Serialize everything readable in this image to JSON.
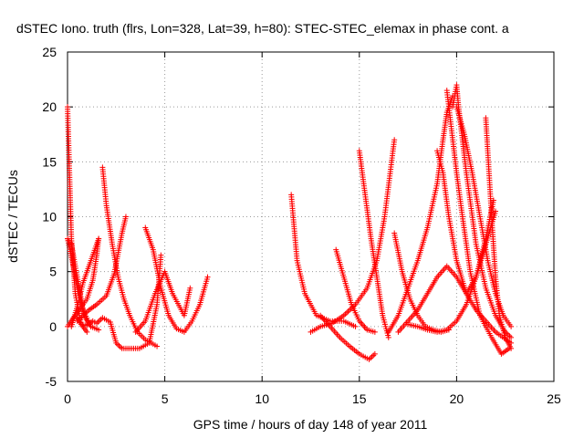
{
  "chart_data": {
    "type": "scatter",
    "title": "dSTEC Iono. truth (flrs, Lon=328, Lat=39, h=80): STEC-STEC_elemax in phase cont. a",
    "xlabel": "GPS time / hours of day 148 of year 2011",
    "ylabel": "dSTEC  / TECUs",
    "xlim": [
      0,
      25
    ],
    "ylim": [
      -5,
      25
    ],
    "xticks": [
      "0",
      "5",
      "10",
      "15",
      "20",
      "25"
    ],
    "yticks": [
      "-5",
      "0",
      "5",
      "10",
      "15",
      "20",
      "25"
    ],
    "grid": true,
    "marker": "+",
    "color": "#ff0000",
    "series": [
      {
        "x": [
          0.0,
          0.1,
          0.2,
          0.4,
          0.7,
          1.0
        ],
        "y": [
          20.0,
          14.0,
          8.0,
          3.0,
          0.2,
          -0.5
        ]
      },
      {
        "x": [
          0.0,
          0.2,
          0.5,
          0.8,
          1.2,
          1.6
        ],
        "y": [
          8.0,
          7.5,
          4.5,
          1.5,
          0.0,
          -0.3
        ]
      },
      {
        "x": [
          0.0,
          0.3,
          0.6,
          1.0,
          1.3,
          1.5,
          1.6
        ],
        "y": [
          0.0,
          0.8,
          1.5,
          2.5,
          4.2,
          6.5,
          8.0
        ]
      },
      {
        "x": [
          0.2,
          0.5,
          0.8,
          1.2,
          1.5,
          1.6
        ],
        "y": [
          0.0,
          1.8,
          4.0,
          6.0,
          7.5,
          8.0
        ]
      },
      {
        "x": [
          0.0,
          0.3,
          0.6,
          0.9,
          1.2
        ],
        "y": [
          8.0,
          5.5,
          2.8,
          0.8,
          0.0
        ]
      },
      {
        "x": [
          0.5,
          0.8,
          1.1,
          1.5,
          2.0,
          2.4,
          2.8,
          3.0
        ],
        "y": [
          0.5,
          1.0,
          1.5,
          2.0,
          2.8,
          4.8,
          8.5,
          10.0
        ]
      },
      {
        "x": [
          1.8,
          2.0,
          2.3,
          2.6,
          2.9,
          3.2,
          3.6,
          4.0,
          4.6
        ],
        "y": [
          14.5,
          11.0,
          7.5,
          4.5,
          2.5,
          1.0,
          -0.5,
          -1.2,
          -1.8
        ]
      },
      {
        "x": [
          0.5,
          0.7,
          1.0,
          1.3,
          1.5,
          1.8,
          2.2,
          2.5,
          2.8,
          3.2,
          3.7,
          4.2,
          4.6,
          4.8
        ],
        "y": [
          0.8,
          0.2,
          0.1,
          0.5,
          0.3,
          0.8,
          0.4,
          -1.5,
          -2.0,
          -2.0,
          -2.0,
          -1.5,
          2.0,
          6.5
        ]
      },
      {
        "x": [
          4.0,
          4.4,
          4.8,
          5.2,
          5.6,
          6.0,
          6.4,
          6.8,
          7.2
        ],
        "y": [
          9.0,
          7.0,
          3.5,
          1.0,
          -0.2,
          -0.5,
          0.5,
          2.0,
          4.5
        ]
      },
      {
        "x": [
          3.5,
          4.0,
          4.5,
          5.0,
          5.4,
          6.0,
          6.3
        ],
        "y": [
          -0.5,
          0.5,
          3.0,
          5.0,
          3.0,
          1.0,
          3.5
        ]
      },
      {
        "x": [
          11.5,
          11.8,
          12.2,
          12.8,
          13.5,
          14.2,
          14.8
        ],
        "y": [
          12.0,
          6.0,
          3.0,
          1.0,
          0.5,
          0.5,
          0.0
        ]
      },
      {
        "x": [
          12.5,
          13.0,
          13.6,
          14.2,
          14.8,
          15.4,
          15.9,
          16.3,
          16.8
        ],
        "y": [
          -0.5,
          0.0,
          0.3,
          1.0,
          2.0,
          3.5,
          6.0,
          10.0,
          17.0
        ]
      },
      {
        "x": [
          13.0,
          13.5,
          14.0,
          14.5,
          15.0,
          15.5,
          15.8
        ],
        "y": [
          1.0,
          0.0,
          -1.0,
          -1.8,
          -2.5,
          -3.0,
          -2.5
        ]
      },
      {
        "x": [
          15.0,
          15.3,
          15.6,
          15.9,
          16.2,
          16.5
        ],
        "y": [
          16.0,
          12.0,
          8.0,
          4.5,
          1.0,
          -1.0
        ]
      },
      {
        "x": [
          13.8,
          14.2,
          14.6,
          15.0,
          15.4,
          15.8
        ],
        "y": [
          7.0,
          4.5,
          2.0,
          0.5,
          -0.3,
          -0.5
        ]
      },
      {
        "x": [
          16.8,
          17.2,
          17.6,
          18.0,
          18.4,
          18.8,
          19.2,
          19.6
        ],
        "y": [
          8.5,
          5.0,
          2.5,
          1.0,
          0.0,
          -0.3,
          -0.5,
          -0.3
        ]
      },
      {
        "x": [
          16.5,
          17.0,
          17.5,
          18.0,
          18.5,
          19.0,
          19.3,
          19.5,
          19.8
        ],
        "y": [
          -0.5,
          1.0,
          3.5,
          6.0,
          9.0,
          13.0,
          17.0,
          19.5,
          21.0
        ]
      },
      {
        "x": [
          19.0,
          19.3,
          19.6,
          20.0,
          20.5,
          21.0,
          21.5,
          22.0,
          22.8
        ],
        "y": [
          16.0,
          14.0,
          10.0,
          6.0,
          3.0,
          1.5,
          0.5,
          -0.5,
          -1.5
        ]
      },
      {
        "x": [
          19.5,
          19.8,
          20.0,
          20.3,
          20.7,
          21.2,
          21.8,
          22.3,
          22.7
        ],
        "y": [
          21.5,
          17.0,
          14.0,
          10.0,
          5.0,
          1.0,
          -1.0,
          -2.5,
          -2.0
        ]
      },
      {
        "x": [
          19.8,
          20.0,
          20.1,
          20.5,
          21.0,
          21.5,
          22.0,
          22.5,
          22.8
        ],
        "y": [
          20.0,
          22.0,
          20.0,
          14.0,
          7.5,
          3.5,
          1.0,
          -0.5,
          -1.0
        ]
      },
      {
        "x": [
          20.0,
          20.4,
          20.8,
          21.2,
          21.6,
          22.0,
          22.4,
          22.8
        ],
        "y": [
          20.0,
          17.5,
          14.0,
          10.0,
          6.0,
          3.0,
          1.0,
          0.0
        ]
      },
      {
        "x": [
          21.5,
          21.6,
          21.8,
          22.0,
          22.2,
          22.5,
          22.8
        ],
        "y": [
          19.0,
          16.0,
          10.0,
          4.5,
          1.0,
          -1.0,
          -2.0
        ]
      },
      {
        "x": [
          17.0,
          17.5,
          18.0,
          18.5,
          19.0,
          19.5,
          20.0,
          20.5,
          21.0,
          21.5,
          21.9
        ],
        "y": [
          -0.5,
          0.5,
          1.5,
          3.0,
          4.5,
          5.5,
          4.5,
          3.0,
          4.5,
          8.0,
          11.5
        ]
      },
      {
        "x": [
          17.5,
          18.0,
          18.5,
          19.0,
          19.5,
          20.0,
          20.5,
          21.0,
          21.5,
          22.0
        ],
        "y": [
          0.2,
          0.0,
          -0.3,
          -0.5,
          -0.3,
          0.5,
          2.0,
          4.5,
          7.5,
          10.5
        ]
      }
    ]
  }
}
